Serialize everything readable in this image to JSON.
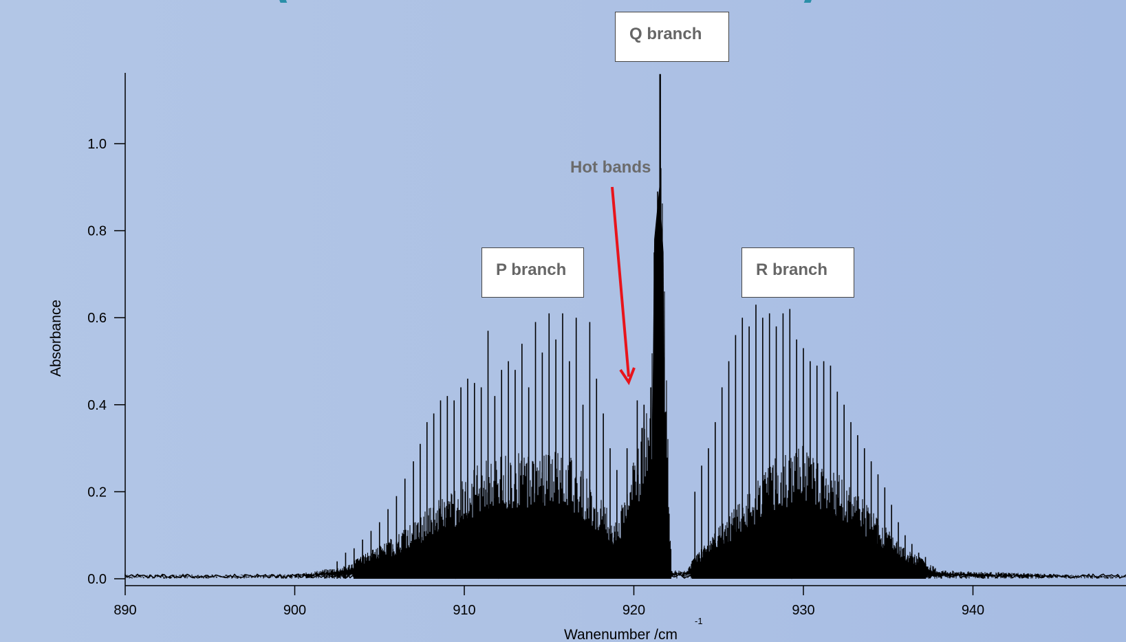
{
  "header": {
    "title_fragment": "( ) )",
    "title_color": "#2a8fa8"
  },
  "chart_data": {
    "type": "line",
    "title": "",
    "xlabel": "Wanenumber /cm",
    "xlabel_superscript": "-1",
    "ylabel": "Absorbance",
    "xlim": [
      890,
      949
    ],
    "ylim": [
      0,
      1.15
    ],
    "x_ticks": [
      "890",
      "900",
      "910",
      "920",
      "930",
      "940"
    ],
    "y_ticks": [
      "0.0",
      "0.2",
      "0.4",
      "0.6",
      "0.8",
      "1.0"
    ],
    "grid": false,
    "line_color": "#000000",
    "annotations": [
      {
        "text": "Q branch",
        "x": 921.5,
        "boxed": true
      },
      {
        "text": "P branch",
        "x": 914,
        "boxed": true
      },
      {
        "text": "R branch",
        "x": 929,
        "boxed": true
      },
      {
        "text": "Hot bands",
        "x": 920,
        "y": 0.45,
        "arrow_color": "#e8141b"
      }
    ],
    "series": [
      {
        "peak_lines": [
          {
            "x": 907.8,
            "y": 0.36
          },
          {
            "x": 908.2,
            "y": 0.38
          },
          {
            "x": 908.6,
            "y": 0.41
          },
          {
            "x": 909.0,
            "y": 0.42
          },
          {
            "x": 909.4,
            "y": 0.41
          },
          {
            "x": 909.8,
            "y": 0.44
          },
          {
            "x": 910.2,
            "y": 0.46
          },
          {
            "x": 910.6,
            "y": 0.45
          },
          {
            "x": 911.0,
            "y": 0.44
          },
          {
            "x": 911.4,
            "y": 0.57
          },
          {
            "x": 911.8,
            "y": 0.42
          },
          {
            "x": 912.2,
            "y": 0.48
          },
          {
            "x": 912.6,
            "y": 0.5
          },
          {
            "x": 913.0,
            "y": 0.48
          },
          {
            "x": 913.4,
            "y": 0.54
          },
          {
            "x": 913.8,
            "y": 0.44
          },
          {
            "x": 914.2,
            "y": 0.59
          },
          {
            "x": 914.6,
            "y": 0.52
          },
          {
            "x": 915.0,
            "y": 0.61
          },
          {
            "x": 915.4,
            "y": 0.55
          },
          {
            "x": 915.8,
            "y": 0.61
          },
          {
            "x": 916.2,
            "y": 0.5
          },
          {
            "x": 916.6,
            "y": 0.6
          },
          {
            "x": 917.0,
            "y": 0.4
          },
          {
            "x": 917.4,
            "y": 0.59
          },
          {
            "x": 917.8,
            "y": 0.46
          },
          {
            "x": 918.2,
            "y": 0.38
          },
          {
            "x": 918.6,
            "y": 0.3
          },
          {
            "x": 919.0,
            "y": 0.25
          },
          {
            "x": 919.6,
            "y": 0.3
          },
          {
            "x": 920.2,
            "y": 0.41
          },
          {
            "x": 920.6,
            "y": 0.4
          },
          {
            "x": 921.0,
            "y": 0.44
          },
          {
            "x": 921.2,
            "y": 0.75
          },
          {
            "x": 921.4,
            "y": 0.89
          },
          {
            "x": 921.55,
            "y": 1.16
          },
          {
            "x": 921.7,
            "y": 0.72
          },
          {
            "x": 923.6,
            "y": 0.2
          },
          {
            "x": 924.0,
            "y": 0.26
          },
          {
            "x": 924.4,
            "y": 0.3
          },
          {
            "x": 924.8,
            "y": 0.36
          },
          {
            "x": 925.2,
            "y": 0.44
          },
          {
            "x": 925.6,
            "y": 0.5
          },
          {
            "x": 926.0,
            "y": 0.56
          },
          {
            "x": 926.4,
            "y": 0.6
          },
          {
            "x": 926.8,
            "y": 0.58
          },
          {
            "x": 927.2,
            "y": 0.63
          },
          {
            "x": 927.6,
            "y": 0.6
          },
          {
            "x": 928.0,
            "y": 0.61
          },
          {
            "x": 928.4,
            "y": 0.58
          },
          {
            "x": 928.8,
            "y": 0.61
          },
          {
            "x": 929.2,
            "y": 0.62
          },
          {
            "x": 929.6,
            "y": 0.55
          },
          {
            "x": 930.0,
            "y": 0.53
          },
          {
            "x": 930.4,
            "y": 0.5
          },
          {
            "x": 930.8,
            "y": 0.49
          },
          {
            "x": 931.2,
            "y": 0.5
          },
          {
            "x": 931.6,
            "y": 0.49
          },
          {
            "x": 932.0,
            "y": 0.43
          },
          {
            "x": 932.4,
            "y": 0.4
          },
          {
            "x": 932.8,
            "y": 0.36
          },
          {
            "x": 933.2,
            "y": 0.33
          },
          {
            "x": 933.6,
            "y": 0.3
          },
          {
            "x": 934.0,
            "y": 0.27
          },
          {
            "x": 934.4,
            "y": 0.24
          },
          {
            "x": 934.8,
            "y": 0.21
          },
          {
            "x": 935.2,
            "y": 0.17
          },
          {
            "x": 935.6,
            "y": 0.13
          },
          {
            "x": 936.0,
            "y": 0.1
          },
          {
            "x": 936.4,
            "y": 0.08
          },
          {
            "x": 936.8,
            "y": 0.06
          },
          {
            "x": 937.2,
            "y": 0.05
          },
          {
            "x": 902.5,
            "y": 0.04
          },
          {
            "x": 903.0,
            "y": 0.06
          },
          {
            "x": 903.5,
            "y": 0.07
          },
          {
            "x": 904.0,
            "y": 0.09
          },
          {
            "x": 904.5,
            "y": 0.11
          },
          {
            "x": 905.0,
            "y": 0.13
          },
          {
            "x": 905.5,
            "y": 0.16
          },
          {
            "x": 906.0,
            "y": 0.19
          },
          {
            "x": 906.5,
            "y": 0.23
          },
          {
            "x": 907.0,
            "y": 0.27
          },
          {
            "x": 907.4,
            "y": 0.31
          }
        ],
        "envelope": [
          [
            890,
            0.005
          ],
          [
            900,
            0.01
          ],
          [
            903,
            0.03
          ],
          [
            906,
            0.1
          ],
          [
            909,
            0.2
          ],
          [
            911,
            0.27
          ],
          [
            914,
            0.3
          ],
          [
            916,
            0.3
          ],
          [
            917.5,
            0.22
          ],
          [
            919,
            0.13
          ],
          [
            920.2,
            0.3
          ],
          [
            921,
            0.45
          ],
          [
            921.6,
            1.0
          ],
          [
            922.2,
            0.02
          ],
          [
            923,
            0.02
          ],
          [
            925,
            0.12
          ],
          [
            928,
            0.27
          ],
          [
            930,
            0.31
          ],
          [
            932,
            0.25
          ],
          [
            934,
            0.16
          ],
          [
            936,
            0.07
          ],
          [
            938,
            0.02
          ],
          [
            949,
            0.005
          ]
        ],
        "envelope_inner": [
          [
            906,
            0.05
          ],
          [
            910,
            0.12
          ],
          [
            914,
            0.1
          ],
          [
            918,
            0.06
          ],
          [
            920,
            0.08
          ],
          [
            924,
            0.05
          ],
          [
            928,
            0.12
          ],
          [
            932,
            0.12
          ],
          [
            936,
            0.04
          ]
        ]
      }
    ]
  }
}
